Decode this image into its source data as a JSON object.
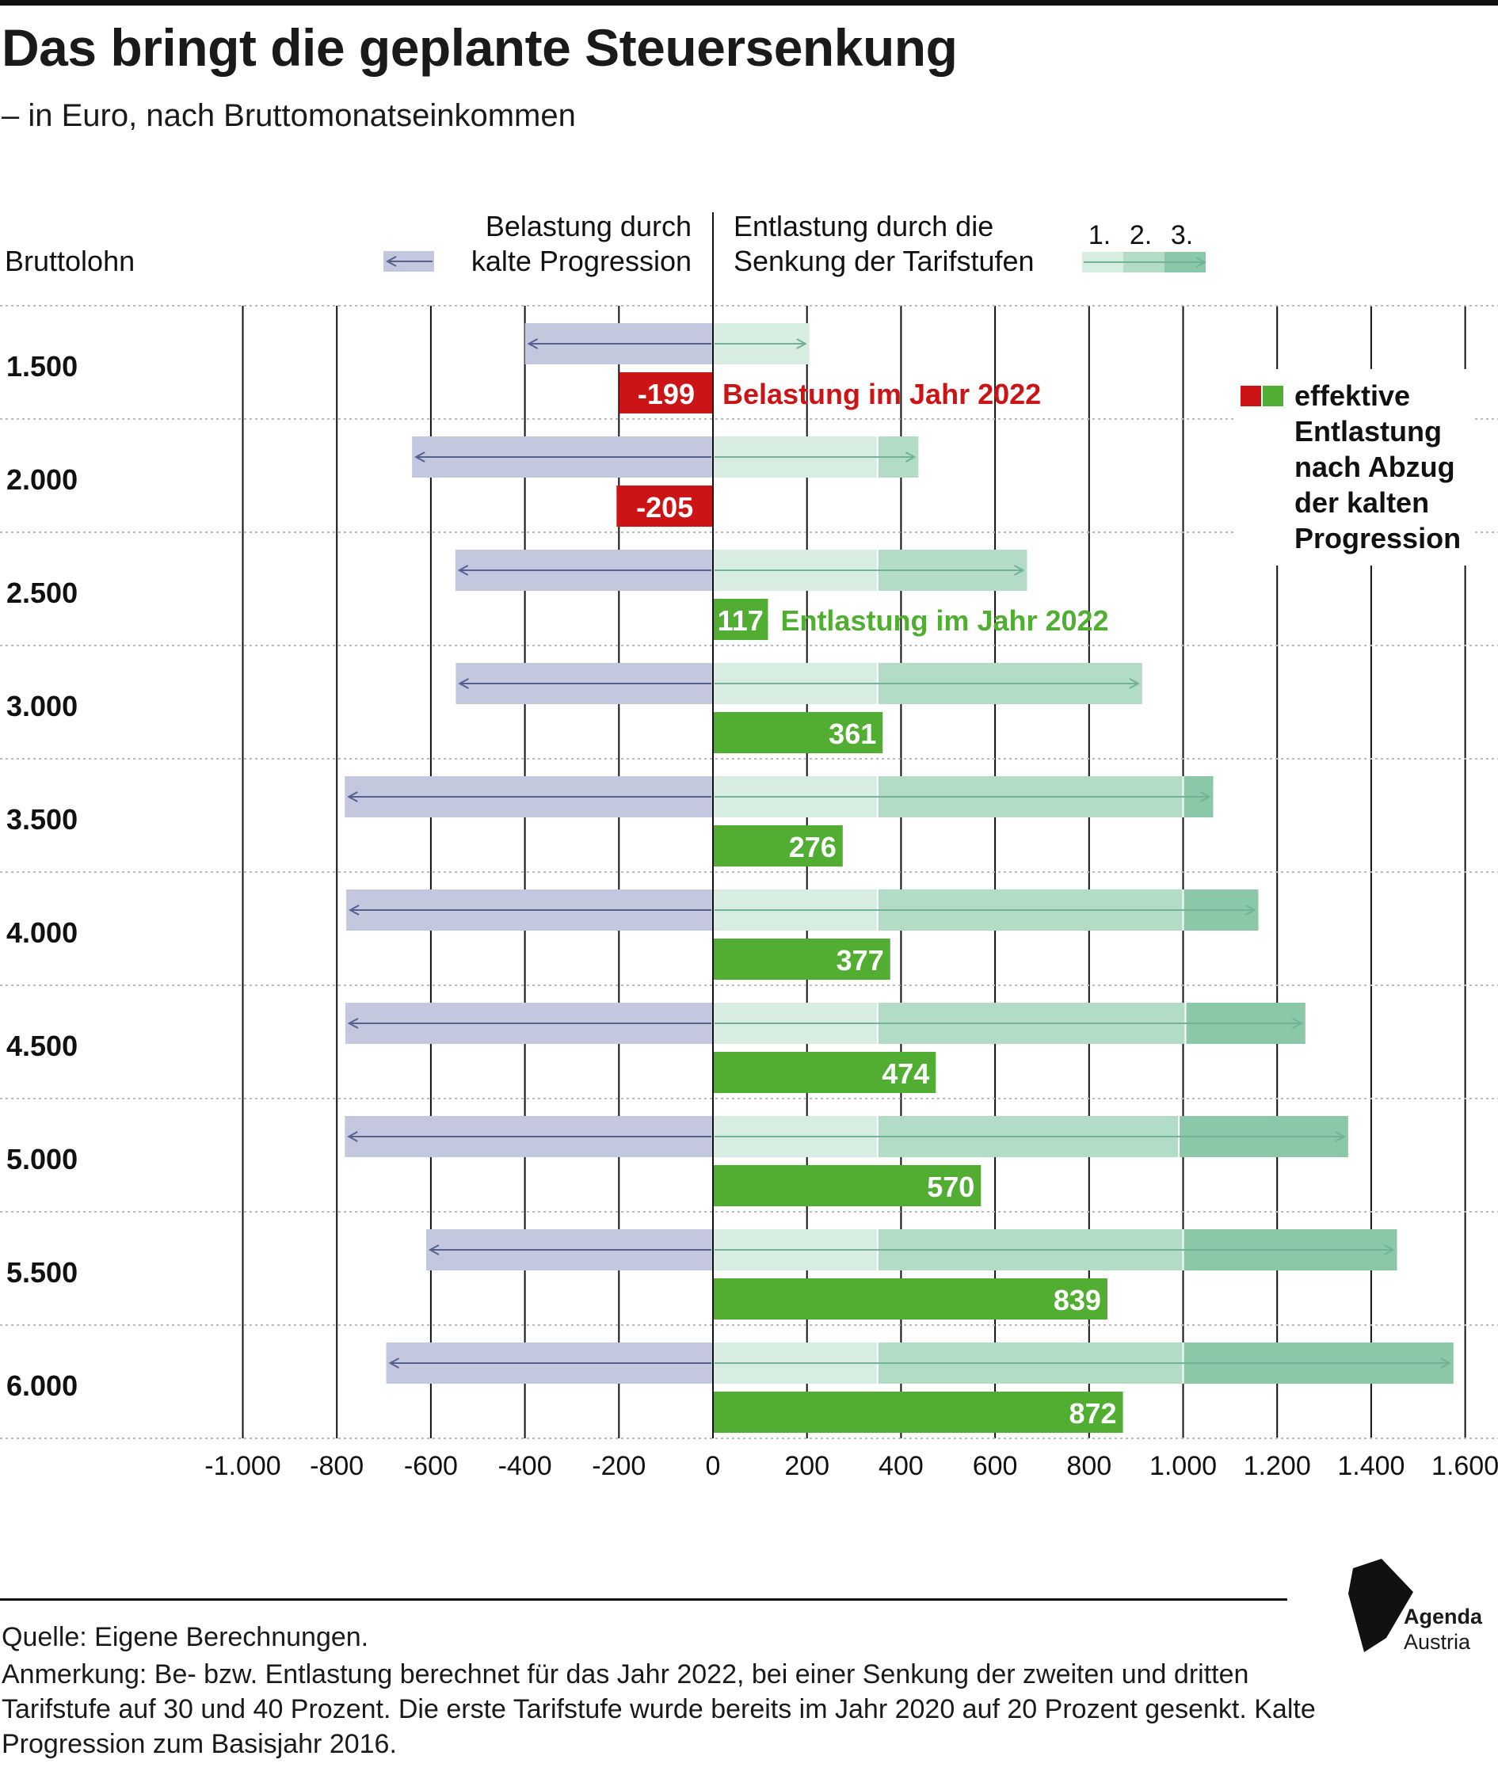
{
  "title": "Das bringt die geplante Steuersenkung",
  "subtitle": "– in Euro, nach Bruttomonatseinkommen",
  "legend": {
    "row_header": "Bruttolohn",
    "burden_line1": "Belastung durch",
    "burden_line2": "kalte Progression",
    "relief_line1": "Entlastung durch die",
    "relief_line2": "Senkung der Tarifstufen",
    "stage_labels": [
      "1.",
      "2.",
      "3."
    ],
    "effective_lines": [
      "effektive",
      "Entlastung",
      "nach Abzug",
      "der kalten",
      "Progression"
    ]
  },
  "annotations": {
    "burden_2022": "Belastung im Jahr 2022",
    "relief_2022": "Entlastung im Jahr 2022"
  },
  "colors": {
    "burden": "#c4c8de",
    "burden_arrow": "#55608f",
    "stage1": "#d8ede2",
    "stage2": "#b3dcc7",
    "stage3": "#8ac8a8",
    "relief_arrow": "#73b295",
    "effective_positive": "#52ae32",
    "effective_negative": "#cc1417",
    "negative_text": "#cc1417",
    "positive_text": "#52ae32"
  },
  "chart_data": {
    "type": "bar",
    "orientation": "horizontal",
    "categories": [
      "1.500",
      "2.000",
      "2.500",
      "3.000",
      "3.500",
      "4.000",
      "4.500",
      "5.000",
      "5.500",
      "6.000"
    ],
    "series": [
      {
        "name": "Belastung durch kalte Progression",
        "values": [
          -400,
          -640,
          -548,
          -547,
          -783,
          -780,
          -782,
          -783,
          -610,
          -695
        ]
      },
      {
        "name": "1.",
        "values": [
          205,
          350,
          350,
          350,
          350,
          350,
          350,
          350,
          350,
          350
        ]
      },
      {
        "name": "2.",
        "values": [
          0,
          87,
          318,
          563,
          650,
          650,
          655,
          641,
          650,
          650
        ]
      },
      {
        "name": "3.",
        "values": [
          0,
          0,
          0,
          0,
          64,
          160,
          255,
          360,
          455,
          575
        ]
      },
      {
        "name": "effektive Entlastung nach Abzug der kalten Progression",
        "values": [
          -199,
          -205,
          117,
          361,
          276,
          377,
          474,
          570,
          839,
          872
        ]
      }
    ],
    "effective_labels": [
      "-199",
      "-205",
      "117",
      "361",
      "276",
      "377",
      "474",
      "570",
      "839",
      "872"
    ],
    "x_ticks": [
      -1000,
      -800,
      -600,
      -400,
      -200,
      0,
      200,
      400,
      600,
      800,
      1000,
      1200,
      1400,
      1600
    ],
    "x_tick_labels": [
      "-1.000",
      "-800",
      "-600",
      "-400",
      "-200",
      "0",
      "200",
      "400",
      "600",
      "800",
      "1.000",
      "1.200",
      "1.400",
      "1.600"
    ],
    "xlim": [
      -1000,
      1600
    ],
    "grid": true
  },
  "footer": {
    "source": "Quelle: Eigene Berechnungen.",
    "note": "Anmerkung: Be- bzw. Entlastung berechnet für das Jahr 2022, bei einer Senkung der zweiten und dritten Tarifstufe auf 30 und 40 Prozent. Die erste Tarifstufe wurde bereits im Jahr 2020 auf 20 Prozent gesenkt. Kalte Progression zum Basisjahr 2016.",
    "logo_line1": "Agenda",
    "logo_line2": "Austria"
  }
}
